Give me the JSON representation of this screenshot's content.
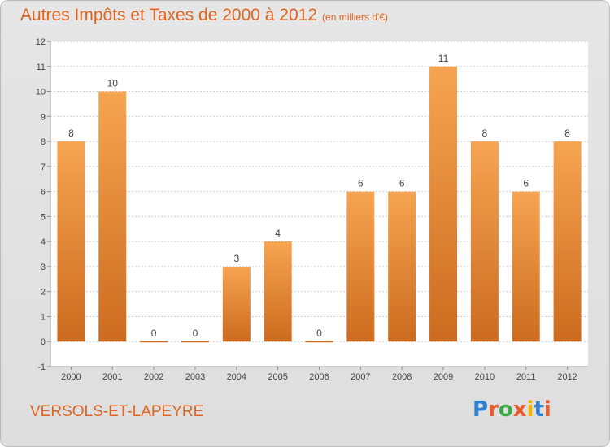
{
  "header": {
    "title": "Autres Impôts et Taxes de 2000 à 2012",
    "subtitle": "(en milliers d'€)"
  },
  "commune": "VERSOLS-ET-LAPEYRE",
  "logo": {
    "text": "Proxiti",
    "letter_colors": [
      "#2f7fd0",
      "#e85b2a",
      "#3aa844",
      "#e85b2a",
      "#f0b400",
      "#2f7fd0",
      "#e85b2a"
    ]
  },
  "colors": {
    "bar_light": "#f6a452",
    "bar_dark": "#cc6b1f",
    "grid": "#cfcfcf",
    "axis_text": "#444444"
  },
  "chart_data": {
    "type": "bar",
    "categories": [
      "2000",
      "2001",
      "2002",
      "2003",
      "2004",
      "2005",
      "2006",
      "2007",
      "2008",
      "2009",
      "2010",
      "2011",
      "2012"
    ],
    "values": [
      8,
      10,
      0,
      0,
      3,
      4,
      0,
      6,
      6,
      11,
      8,
      6,
      8
    ],
    "data_labels": [
      "8",
      "10",
      "0",
      "0",
      "3",
      "4",
      "0",
      "6",
      "6",
      "11",
      "8",
      "6",
      "8"
    ],
    "y_ticks": [
      "-1",
      "0",
      "1",
      "2",
      "3",
      "4",
      "5",
      "6",
      "7",
      "8",
      "9",
      "10",
      "11",
      "12"
    ],
    "ylim": [
      -1,
      12
    ],
    "grid": true,
    "legend": "none"
  }
}
